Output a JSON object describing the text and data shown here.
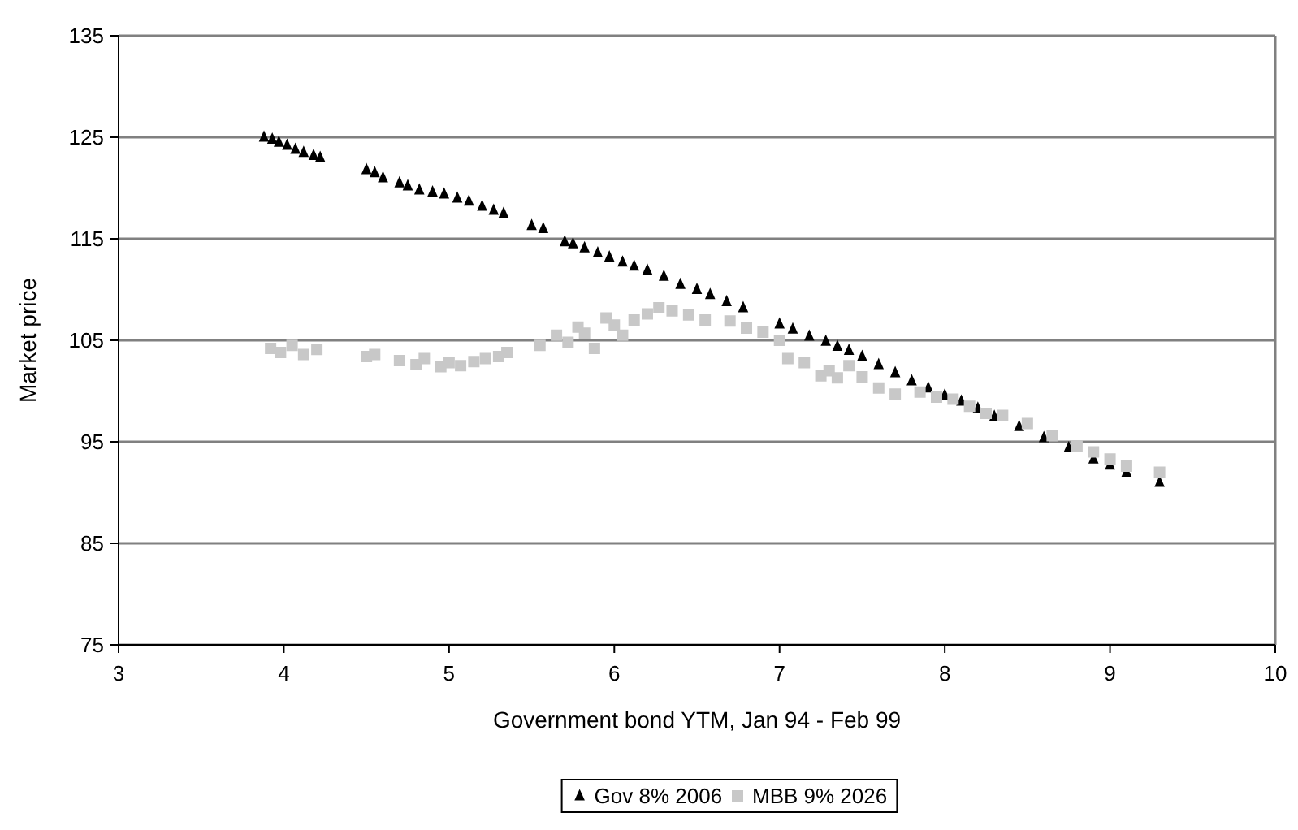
{
  "chart_data": {
    "type": "scatter",
    "xlabel": "Government bond YTM, Jan 94 - Feb 99",
    "ylabel": "Market price",
    "xlim": [
      3,
      10
    ],
    "xticks": [
      3,
      4,
      5,
      6,
      7,
      8,
      9,
      10
    ],
    "ylim": [
      75,
      135
    ],
    "yticks": [
      75,
      85,
      95,
      105,
      115,
      125,
      135
    ],
    "grid": "y",
    "legend": "bottom",
    "series": [
      {
        "name": "Gov 8% 2006",
        "color": "#000000",
        "marker": "triangle",
        "x": [
          3.88,
          3.93,
          3.97,
          4.02,
          4.07,
          4.12,
          4.18,
          4.22,
          4.5,
          4.55,
          4.6,
          4.7,
          4.75,
          4.82,
          4.9,
          4.97,
          5.05,
          5.12,
          5.2,
          5.27,
          5.33,
          5.5,
          5.57,
          5.7,
          5.75,
          5.82,
          5.9,
          5.97,
          6.05,
          6.12,
          6.2,
          6.3,
          6.4,
          6.5,
          6.58,
          6.68,
          6.78,
          7.0,
          7.08,
          7.18,
          7.28,
          7.35,
          7.42,
          7.5,
          7.6,
          7.7,
          7.8,
          7.9,
          8.0,
          8.1,
          8.2,
          8.3,
          8.45,
          8.6,
          8.75,
          8.9,
          9.0,
          9.1,
          9.3
        ],
        "values": [
          125,
          124.8,
          124.5,
          124.2,
          123.8,
          123.5,
          123.2,
          123,
          121.8,
          121.5,
          121,
          120.5,
          120.2,
          119.8,
          119.6,
          119.4,
          119,
          118.7,
          118.2,
          117.8,
          117.5,
          116.3,
          116,
          114.7,
          114.5,
          114.1,
          113.6,
          113.2,
          112.7,
          112.3,
          111.9,
          111.3,
          110.5,
          110,
          109.5,
          108.8,
          108.2,
          106.6,
          106.1,
          105.4,
          104.9,
          104.4,
          104,
          103.4,
          102.6,
          101.8,
          101,
          100.3,
          99.6,
          99,
          98.3,
          97.5,
          96.5,
          95.4,
          94.4,
          93.3,
          92.7,
          92,
          91
        ]
      },
      {
        "name": "MBB 9% 2026",
        "color": "#c8c8c8",
        "marker": "square",
        "x": [
          3.92,
          3.98,
          4.05,
          4.12,
          4.2,
          4.5,
          4.55,
          4.7,
          4.8,
          4.85,
          4.95,
          5.0,
          5.07,
          5.15,
          5.22,
          5.3,
          5.35,
          5.55,
          5.65,
          5.72,
          5.78,
          5.82,
          5.88,
          5.95,
          6.0,
          6.05,
          6.12,
          6.2,
          6.27,
          6.35,
          6.45,
          6.55,
          6.7,
          6.8,
          6.9,
          7.0,
          7.05,
          7.15,
          7.25,
          7.3,
          7.35,
          7.42,
          7.5,
          7.6,
          7.7,
          7.85,
          7.95,
          8.05,
          8.15,
          8.25,
          8.35,
          8.5,
          8.65,
          8.8,
          8.9,
          9.0,
          9.1,
          9.3
        ],
        "values": [
          104.2,
          103.8,
          104.5,
          103.6,
          104.1,
          103.4,
          103.6,
          103,
          102.6,
          103.2,
          102.4,
          102.8,
          102.5,
          102.9,
          103.2,
          103.4,
          103.8,
          104.5,
          105.5,
          104.8,
          106.3,
          105.7,
          104.2,
          107.2,
          106.5,
          105.5,
          107,
          107.6,
          108.2,
          107.9,
          107.5,
          107,
          106.9,
          106.2,
          105.8,
          105,
          103.2,
          102.8,
          101.5,
          102,
          101.3,
          102.5,
          101.4,
          100.3,
          99.7,
          99.9,
          99.4,
          99.2,
          98.5,
          97.8,
          97.6,
          96.8,
          95.6,
          94.6,
          94,
          93.3,
          92.6,
          92
        ]
      }
    ]
  }
}
